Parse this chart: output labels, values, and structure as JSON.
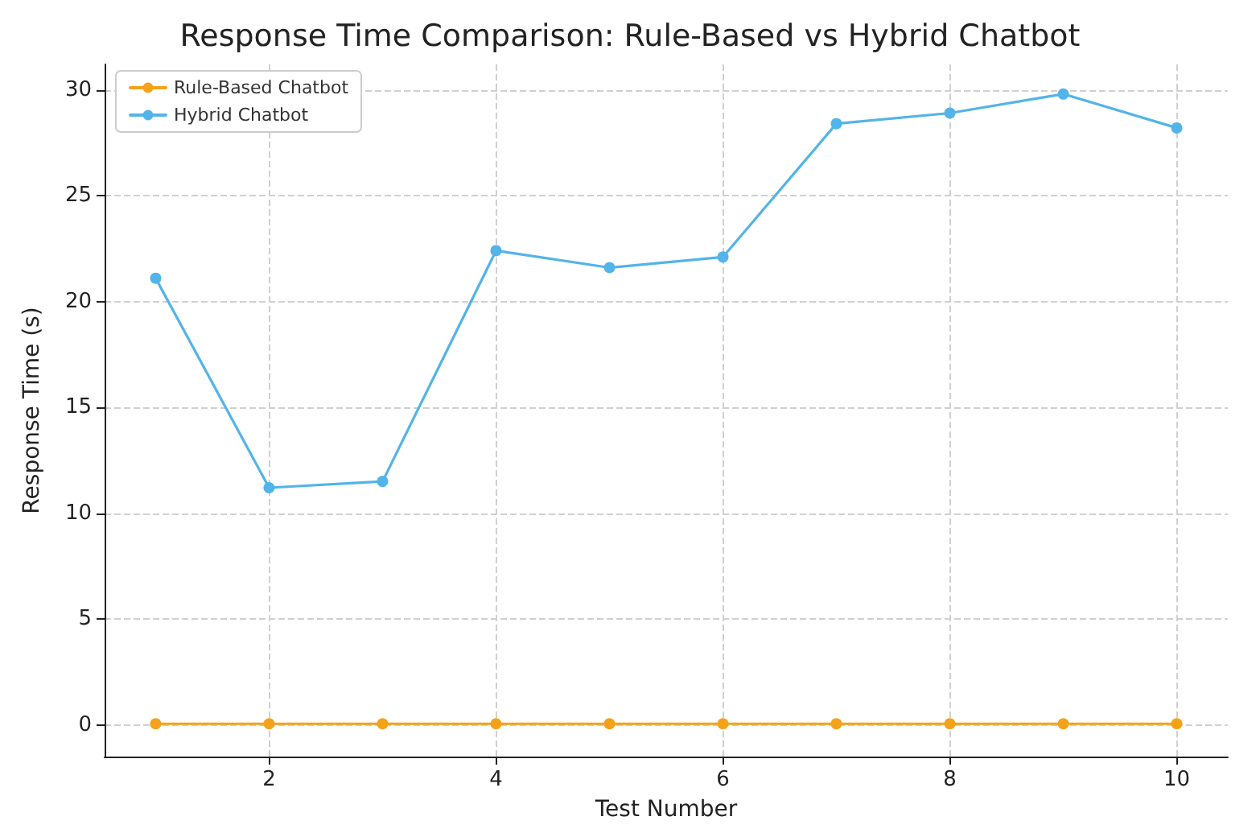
{
  "chart_data": {
    "type": "line",
    "title": "Response Time Comparison: Rule-Based vs Hybrid Chatbot",
    "xlabel": "Test Number",
    "ylabel": "Response Time (s)",
    "x": [
      1,
      2,
      3,
      4,
      5,
      6,
      7,
      8,
      9,
      10
    ],
    "series": [
      {
        "name": "Rule-Based Chatbot",
        "color": "#f5a21b",
        "values": [
          0.05,
          0.05,
          0.05,
          0.05,
          0.05,
          0.05,
          0.05,
          0.05,
          0.05,
          0.05
        ]
      },
      {
        "name": "Hybrid Chatbot",
        "color": "#52b4e8",
        "values": [
          21.1,
          11.2,
          11.5,
          22.4,
          21.6,
          22.1,
          28.4,
          28.9,
          29.8,
          28.2
        ]
      }
    ],
    "xlim": [
      0.55,
      10.45
    ],
    "xticks": [
      2,
      4,
      6,
      8,
      10
    ],
    "ylim": [
      -1.5,
      31.2
    ],
    "yticks": [
      0,
      5,
      10,
      15,
      20,
      25,
      30
    ],
    "grid": true,
    "legend": "top left",
    "marker": "circle",
    "line_style": "solid"
  }
}
